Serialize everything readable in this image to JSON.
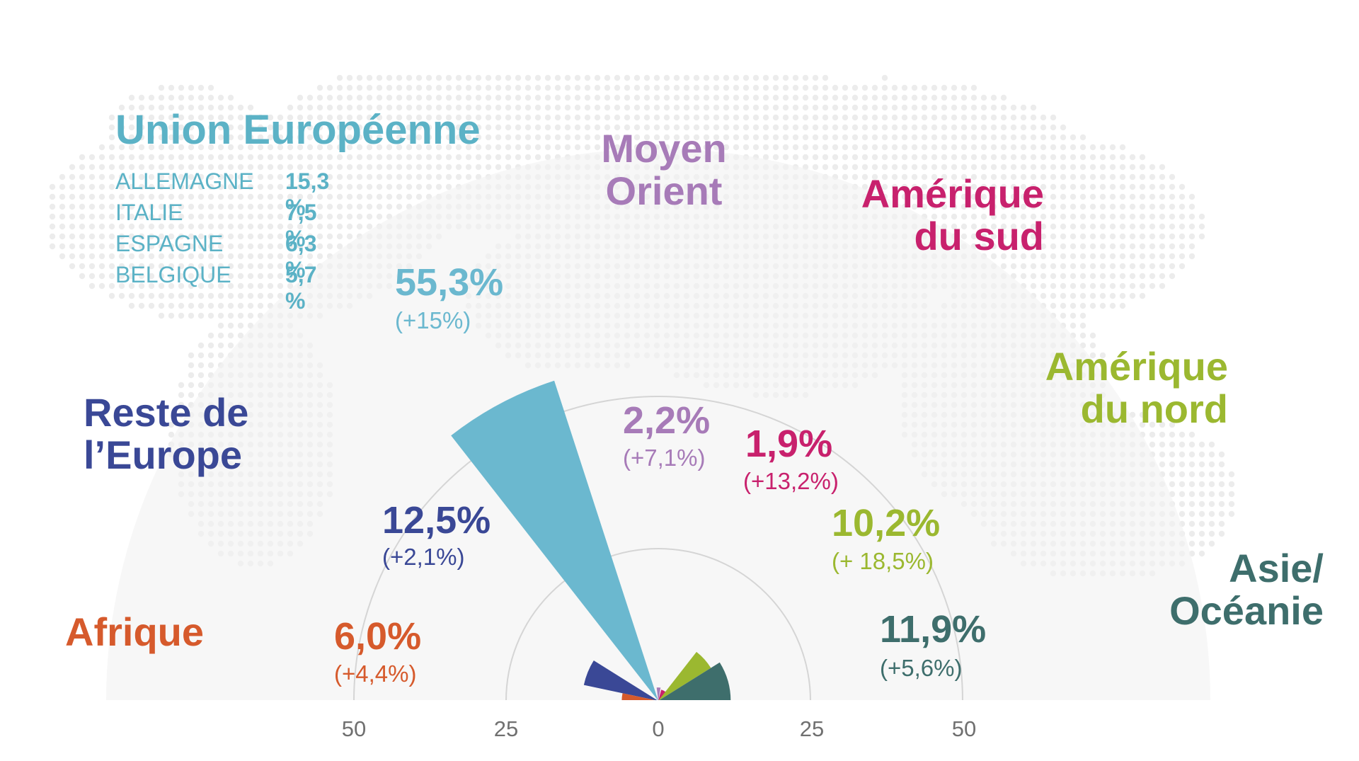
{
  "colors": {
    "union_europeenne": "#6bb8cf",
    "reste_europe": "#3a4896",
    "afrique": "#d65a2c",
    "moyen_orient": "#a77bb8",
    "amerique_sud": "#c8216d",
    "amerique_nord": "#9bb830",
    "asie_oceanie": "#3e6e6c"
  },
  "eu_breakdown": {
    "title": "Union Européenne",
    "rows": [
      {
        "country": "ALLEMAGNE",
        "value": "15,3 %"
      },
      {
        "country": "ITALIE",
        "value": "7,5 %"
      },
      {
        "country": "ESPAGNE",
        "value": "6,3 %"
      },
      {
        "country": "BELGIQUE",
        "value": "5,7 %"
      }
    ]
  },
  "chart_data": {
    "type": "polar-bar",
    "axis_ticks": [
      "50",
      "25",
      "0",
      "25",
      "50"
    ],
    "axis_range": [
      0,
      60
    ],
    "series": [
      {
        "key": "union_europeenne",
        "region": "",
        "value": 55.3,
        "label": "55,3%",
        "change": "(+15%)",
        "color": "#6bb8cf"
      },
      {
        "key": "reste_europe",
        "region": "Reste de l’Europe",
        "value": 12.5,
        "label": "12,5%",
        "change": "(+2,1%)",
        "color": "#3a4896"
      },
      {
        "key": "afrique",
        "region": "Afrique",
        "value": 6.0,
        "label": "6,0%",
        "change": "(+4,4%)",
        "color": "#d65a2c"
      },
      {
        "key": "moyen_orient",
        "region": "Moyen Orient",
        "value": 2.2,
        "label": "2,2%",
        "change": "(+7,1%)",
        "color": "#a77bb8"
      },
      {
        "key": "amerique_sud",
        "region": "Amérique du sud",
        "value": 1.9,
        "label": "1,9%",
        "change": "(+13,2%)",
        "color": "#c8216d"
      },
      {
        "key": "amerique_nord",
        "region": "Amérique du nord",
        "value": 10.2,
        "label": "10,2%",
        "change": "(+ 18,5%)",
        "color": "#9bb830"
      },
      {
        "key": "asie_oceanie",
        "region": "Asie/ Océanie",
        "value": 11.9,
        "label": "11,9%",
        "change": "(+5,6%)",
        "color": "#3e6e6c"
      }
    ]
  },
  "region_labels": {
    "reste_europe": [
      "Reste de",
      "l’Europe"
    ],
    "afrique": [
      "Afrique"
    ],
    "moyen_orient": [
      "Moyen",
      "Orient"
    ],
    "amerique_sud": [
      "Amérique",
      "du sud"
    ],
    "amerique_nord": [
      "Amérique",
      "du nord"
    ],
    "asie_oceanie": [
      "Asie/",
      "Océanie"
    ]
  }
}
